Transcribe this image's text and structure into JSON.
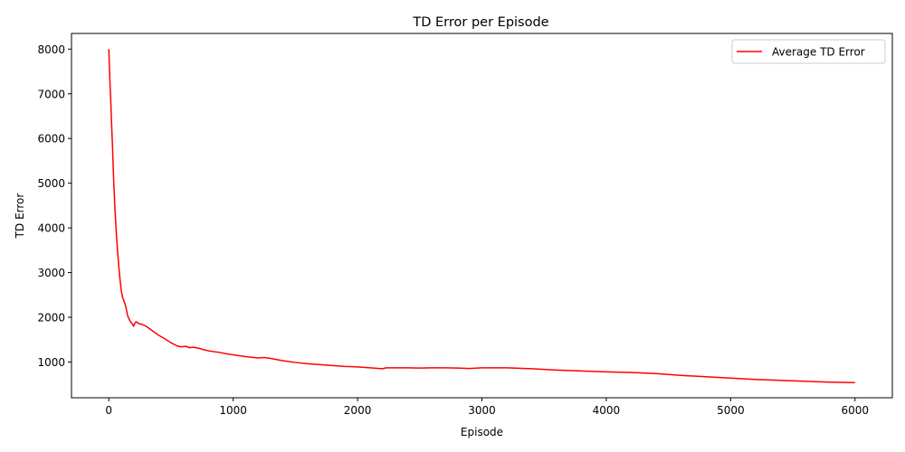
{
  "chart_data": {
    "type": "line",
    "title": "TD Error per Episode",
    "xlabel": "Episode",
    "ylabel": "TD Error",
    "xlim": [
      -300,
      6300
    ],
    "ylim": [
      200,
      8350
    ],
    "xticks": [
      0,
      1000,
      2000,
      3000,
      4000,
      5000,
      6000
    ],
    "yticks": [
      1000,
      2000,
      3000,
      4000,
      5000,
      6000,
      7000,
      8000
    ],
    "grid": false,
    "legend_position": "top-right",
    "series": [
      {
        "name": "Average TD Error",
        "color": "#ff0000",
        "x": [
          0,
          5,
          10,
          15,
          20,
          30,
          40,
          50,
          60,
          70,
          80,
          90,
          100,
          110,
          120,
          130,
          140,
          150,
          160,
          170,
          180,
          190,
          200,
          210,
          220,
          230,
          250,
          270,
          300,
          330,
          360,
          400,
          450,
          500,
          550,
          580,
          620,
          650,
          680,
          720,
          760,
          800,
          850,
          900,
          950,
          1000,
          1100,
          1200,
          1250,
          1300,
          1400,
          1500,
          1600,
          1700,
          1800,
          1900,
          2000,
          2100,
          2200,
          2230,
          2300,
          2400,
          2500,
          2600,
          2700,
          2800,
          2900,
          3000,
          3200,
          3400,
          3600,
          3800,
          4000,
          4200,
          4400,
          4600,
          4800,
          5000,
          5200,
          5400,
          5600,
          5800,
          6000
        ],
        "y": [
          8000,
          7600,
          7200,
          6900,
          6500,
          5800,
          5000,
          4400,
          3900,
          3500,
          3150,
          2850,
          2600,
          2450,
          2380,
          2300,
          2200,
          2050,
          1980,
          1920,
          1880,
          1850,
          1800,
          1870,
          1900,
          1880,
          1850,
          1840,
          1800,
          1740,
          1680,
          1600,
          1520,
          1430,
          1360,
          1340,
          1350,
          1320,
          1330,
          1310,
          1280,
          1250,
          1230,
          1210,
          1180,
          1160,
          1120,
          1090,
          1100,
          1080,
          1030,
          990,
          960,
          940,
          920,
          900,
          890,
          870,
          850,
          870,
          870,
          870,
          865,
          870,
          870,
          865,
          855,
          870,
          870,
          850,
          820,
          800,
          780,
          765,
          740,
          700,
          670,
          640,
          610,
          590,
          570,
          550,
          540
        ]
      }
    ]
  }
}
